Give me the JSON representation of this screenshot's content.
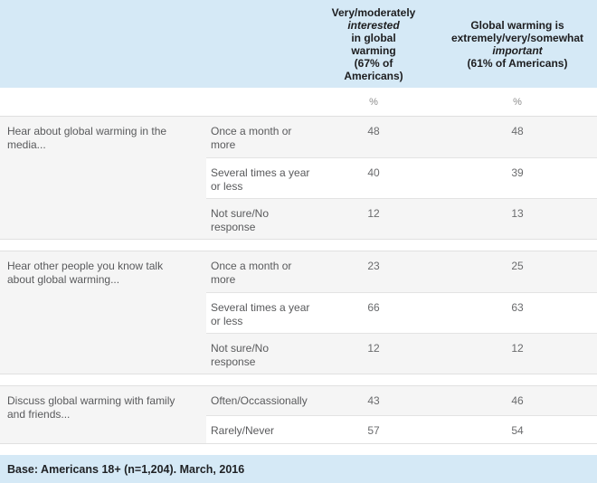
{
  "header": {
    "percent": "%",
    "col1": {
      "lines": [
        "Very/moderately",
        "interested",
        "in global",
        "warming",
        "(67% of",
        "Americans)"
      ]
    },
    "col2": {
      "lines": [
        "Global warming is",
        "extremely/very/somewhat",
        "important",
        "(61% of Americans)"
      ]
    }
  },
  "table": {
    "groups": [
      {
        "label": "Hear about global warming in the media...",
        "rows": [
          {
            "label": "Once a month or more",
            "col1": "48",
            "col2": "48"
          },
          {
            "label": "Several times a year or less",
            "col1": "40",
            "col2": "39"
          },
          {
            "label": "Not sure/No response",
            "col1": "12",
            "col2": "13"
          }
        ]
      },
      {
        "label": "Hear other people you know talk about global warming...",
        "rows": [
          {
            "label": "Once a month or more",
            "col1": "23",
            "col2": "25"
          },
          {
            "label": "Several times a year or less",
            "col1": "66",
            "col2": "63"
          },
          {
            "label": "Not sure/No response",
            "col1": "12",
            "col2": "12"
          }
        ]
      },
      {
        "label": "Discuss global warming with family and friends...",
        "rows": [
          {
            "label": "Often/Occassionally",
            "col1": "43",
            "col2": "46"
          },
          {
            "label": "Rarely/Never",
            "col1": "57",
            "col2": "54"
          }
        ]
      }
    ]
  },
  "footer": {
    "text": "Base: Americans 18+ (n=1,204). March, 2016"
  },
  "colors": {
    "header_bg": "#d5e9f6",
    "stripe_bg": "#f5f5f5",
    "border": "#e0e0e0",
    "header_text": "#1d1d1f",
    "body_text": "#595a5c"
  },
  "chart_data": {
    "type": "table",
    "unit": "%",
    "columns": [
      "Very/moderately interested in global warming (67% of Americans)",
      "Global warming is extremely/very/somewhat important (61% of Americans)"
    ],
    "row_groups": [
      {
        "label": "Hear about global warming in the media...",
        "rows": [
          {
            "category": "Once a month or more",
            "values": [
              48,
              48
            ]
          },
          {
            "category": "Several times a year or less",
            "values": [
              40,
              39
            ]
          },
          {
            "category": "Not sure/No response",
            "values": [
              12,
              13
            ]
          }
        ]
      },
      {
        "label": "Hear other people you know talk about global warming...",
        "rows": [
          {
            "category": "Once a month or more",
            "values": [
              23,
              25
            ]
          },
          {
            "category": "Several times a year or less",
            "values": [
              66,
              63
            ]
          },
          {
            "category": "Not sure/No response",
            "values": [
              12,
              12
            ]
          }
        ]
      },
      {
        "label": "Discuss global warming with family and friends...",
        "rows": [
          {
            "category": "Often/Occassionally",
            "values": [
              43,
              46
            ]
          },
          {
            "category": "Rarely/Never",
            "values": [
              57,
              54
            ]
          }
        ]
      }
    ],
    "note": "Base: Americans 18+ (n=1,204). March, 2016"
  }
}
